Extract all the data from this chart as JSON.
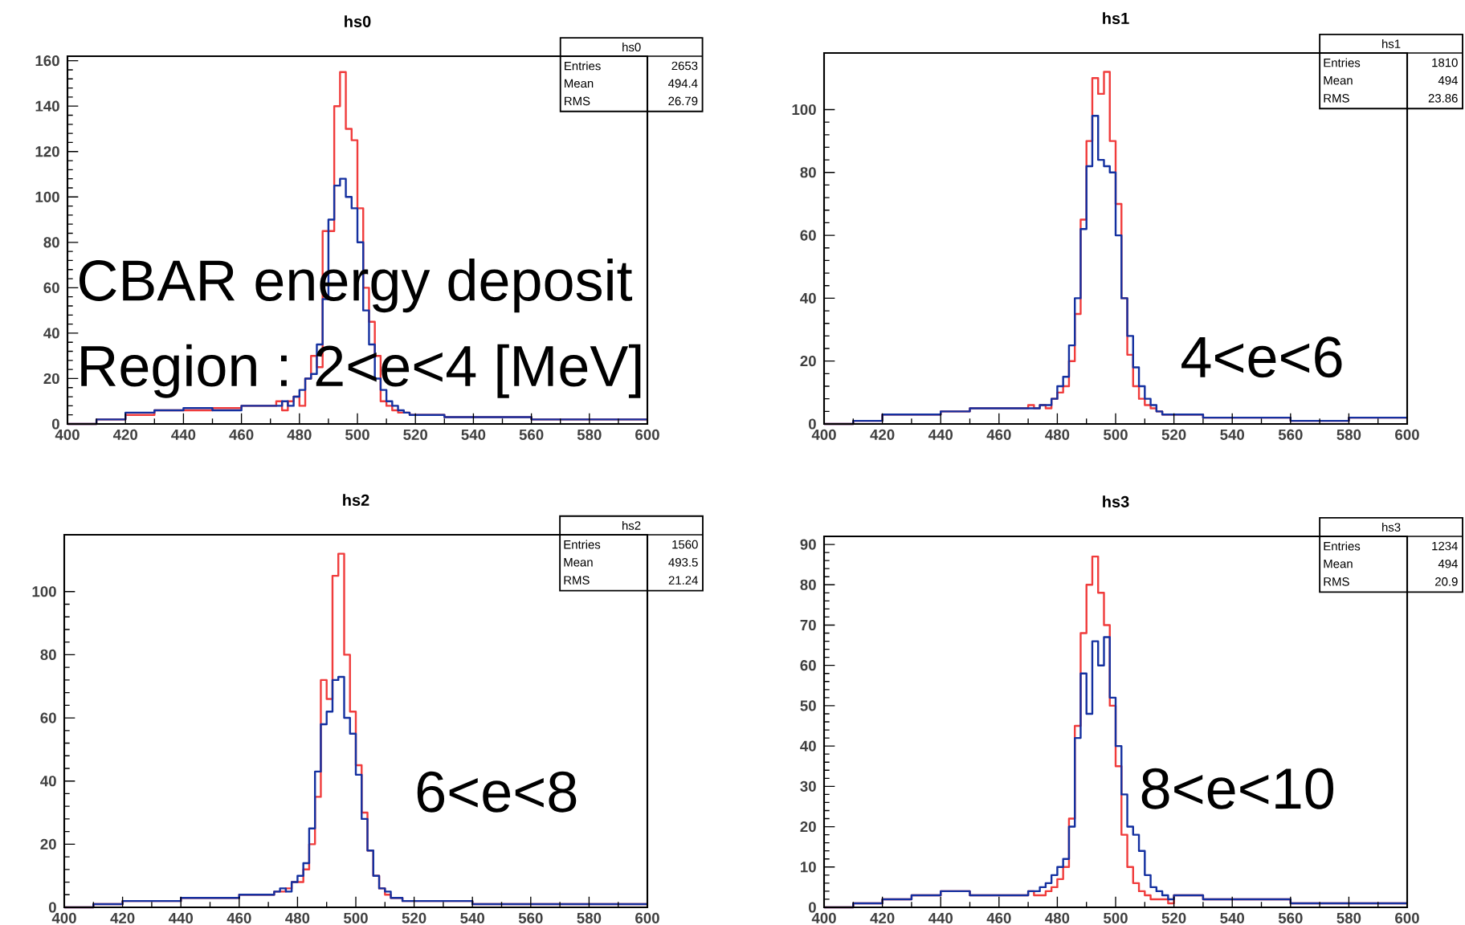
{
  "chart_data": [
    {
      "type": "histogram",
      "title": "hs0",
      "bins": [
        400,
        410,
        420,
        430,
        440,
        450,
        460,
        470,
        472,
        474,
        476,
        478,
        480,
        482,
        484,
        486,
        488,
        490,
        492,
        494,
        496,
        498,
        500,
        502,
        504,
        506,
        508,
        510,
        512,
        514,
        516,
        518,
        520,
        530,
        540,
        550,
        560,
        570,
        580,
        590,
        600
      ],
      "series": [
        {
          "color": "#f03c3c",
          "values": [
            0,
            2,
            4,
            6,
            6,
            7,
            8,
            8,
            10,
            6,
            10,
            12,
            8,
            20,
            30,
            25,
            85,
            85,
            140,
            155,
            130,
            125,
            95,
            60,
            45,
            30,
            10,
            8,
            6,
            5,
            5,
            4,
            4,
            3,
            3,
            3,
            2,
            2,
            2,
            2
          ]
        },
        {
          "color": "#1430a0",
          "values": [
            0,
            2,
            5,
            6,
            7,
            6,
            8,
            8,
            8,
            10,
            8,
            12,
            15,
            20,
            22,
            35,
            55,
            90,
            105,
            108,
            100,
            95,
            80,
            50,
            35,
            20,
            15,
            10,
            8,
            6,
            5,
            4,
            4,
            3,
            3,
            3,
            2,
            2,
            2,
            2
          ]
        }
      ],
      "xlim": [
        400,
        600
      ],
      "ylim": [
        0,
        162
      ],
      "xticks": [
        400,
        420,
        440,
        460,
        480,
        500,
        520,
        540,
        560,
        580,
        600
      ],
      "yticks": [
        0,
        20,
        40,
        60,
        80,
        100,
        120,
        140,
        160
      ],
      "annotations": [
        "hs0",
        "Entries",
        "2653",
        "Mean",
        "494.4",
        "RMS",
        "26.79",
        "CBAR energy deposit",
        "Region : 2<e<4 [MeV]"
      ]
    },
    {
      "type": "histogram",
      "title": "hs1",
      "bins": [
        400,
        410,
        420,
        430,
        440,
        450,
        460,
        470,
        472,
        474,
        476,
        478,
        480,
        482,
        484,
        486,
        488,
        490,
        492,
        494,
        496,
        498,
        500,
        502,
        504,
        506,
        508,
        510,
        512,
        514,
        516,
        518,
        520,
        530,
        540,
        550,
        560,
        570,
        580,
        590,
        600
      ],
      "series": [
        {
          "color": "#f03c3c",
          "values": [
            0,
            1,
            3,
            3,
            4,
            5,
            5,
            6,
            5,
            6,
            5,
            8,
            10,
            12,
            20,
            35,
            65,
            90,
            110,
            105,
            112,
            90,
            70,
            40,
            22,
            12,
            8,
            6,
            5,
            4,
            3,
            3,
            3,
            2,
            2,
            2,
            1,
            1,
            2,
            2
          ]
        },
        {
          "color": "#1430a0",
          "values": [
            0,
            1,
            3,
            3,
            4,
            5,
            5,
            5,
            5,
            6,
            6,
            8,
            12,
            15,
            25,
            40,
            62,
            82,
            98,
            84,
            82,
            80,
            60,
            40,
            28,
            18,
            12,
            8,
            6,
            4,
            3,
            3,
            3,
            2,
            2,
            2,
            1,
            1,
            2,
            2
          ]
        }
      ],
      "xlim": [
        400,
        600
      ],
      "ylim": [
        0,
        118
      ],
      "xticks": [
        400,
        420,
        440,
        460,
        480,
        500,
        520,
        540,
        560,
        580,
        600
      ],
      "yticks": [
        0,
        20,
        40,
        60,
        80,
        100
      ],
      "annotations": [
        "hs1",
        "Entries",
        "1810",
        "Mean",
        "494",
        "RMS",
        "23.86",
        "4<e<6"
      ]
    },
    {
      "type": "histogram",
      "title": "hs2",
      "bins": [
        400,
        410,
        420,
        430,
        440,
        450,
        460,
        470,
        472,
        474,
        476,
        478,
        480,
        482,
        484,
        486,
        488,
        490,
        492,
        494,
        496,
        498,
        500,
        502,
        504,
        506,
        508,
        510,
        512,
        514,
        516,
        518,
        520,
        530,
        540,
        550,
        560,
        570,
        580,
        590,
        600
      ],
      "series": [
        {
          "color": "#f03c3c",
          "values": [
            0,
            1,
            2,
            2,
            3,
            3,
            4,
            4,
            5,
            5,
            6,
            8,
            8,
            12,
            20,
            35,
            72,
            66,
            105,
            112,
            80,
            62,
            45,
            30,
            18,
            10,
            6,
            4,
            3,
            3,
            2,
            2,
            2,
            2,
            1,
            1,
            1,
            1,
            1,
            1
          ]
        },
        {
          "color": "#1430a0",
          "values": [
            0,
            1,
            2,
            2,
            3,
            3,
            4,
            4,
            5,
            6,
            5,
            8,
            10,
            14,
            25,
            43,
            58,
            62,
            72,
            73,
            60,
            55,
            42,
            28,
            18,
            10,
            6,
            5,
            3,
            3,
            2,
            2,
            2,
            2,
            1,
            1,
            1,
            1,
            1,
            1
          ]
        }
      ],
      "xlim": [
        400,
        600
      ],
      "ylim": [
        0,
        118
      ],
      "xticks": [
        400,
        420,
        440,
        460,
        480,
        500,
        520,
        540,
        560,
        580,
        600
      ],
      "yticks": [
        0,
        20,
        40,
        60,
        80,
        100
      ],
      "annotations": [
        "hs2",
        "Entries",
        "1560",
        "Mean",
        "493.5",
        "RMS",
        "21.24",
        "6<e<8"
      ]
    },
    {
      "type": "histogram",
      "title": "hs3",
      "bins": [
        400,
        410,
        420,
        430,
        440,
        450,
        460,
        470,
        472,
        474,
        476,
        478,
        480,
        482,
        484,
        486,
        488,
        490,
        492,
        494,
        496,
        498,
        500,
        502,
        504,
        506,
        508,
        510,
        512,
        514,
        516,
        518,
        520,
        530,
        540,
        550,
        560,
        570,
        580,
        590,
        600
      ],
      "series": [
        {
          "color": "#f03c3c",
          "values": [
            0,
            1,
            2,
            3,
            4,
            3,
            3,
            4,
            3,
            3,
            4,
            5,
            7,
            10,
            22,
            45,
            68,
            80,
            87,
            78,
            70,
            50,
            35,
            18,
            10,
            6,
            4,
            3,
            2,
            2,
            2,
            1,
            3,
            2,
            2,
            2,
            1,
            1,
            1,
            1
          ]
        },
        {
          "color": "#1430a0",
          "values": [
            0,
            1,
            2,
            3,
            4,
            3,
            3,
            4,
            4,
            5,
            6,
            8,
            10,
            12,
            20,
            42,
            58,
            48,
            66,
            60,
            67,
            52,
            40,
            28,
            20,
            18,
            14,
            8,
            5,
            4,
            3,
            2,
            3,
            2,
            2,
            2,
            1,
            1,
            1,
            1
          ]
        }
      ],
      "xlim": [
        400,
        600
      ],
      "ylim": [
        0,
        92
      ],
      "xticks": [
        400,
        420,
        440,
        460,
        480,
        500,
        520,
        540,
        560,
        580,
        600
      ],
      "yticks": [
        0,
        10,
        20,
        30,
        40,
        50,
        60,
        70,
        80,
        90
      ],
      "annotations": [
        "hs3",
        "Entries",
        "1234",
        "Mean",
        "494",
        "RMS",
        "20.9",
        "8<e<10"
      ]
    }
  ]
}
